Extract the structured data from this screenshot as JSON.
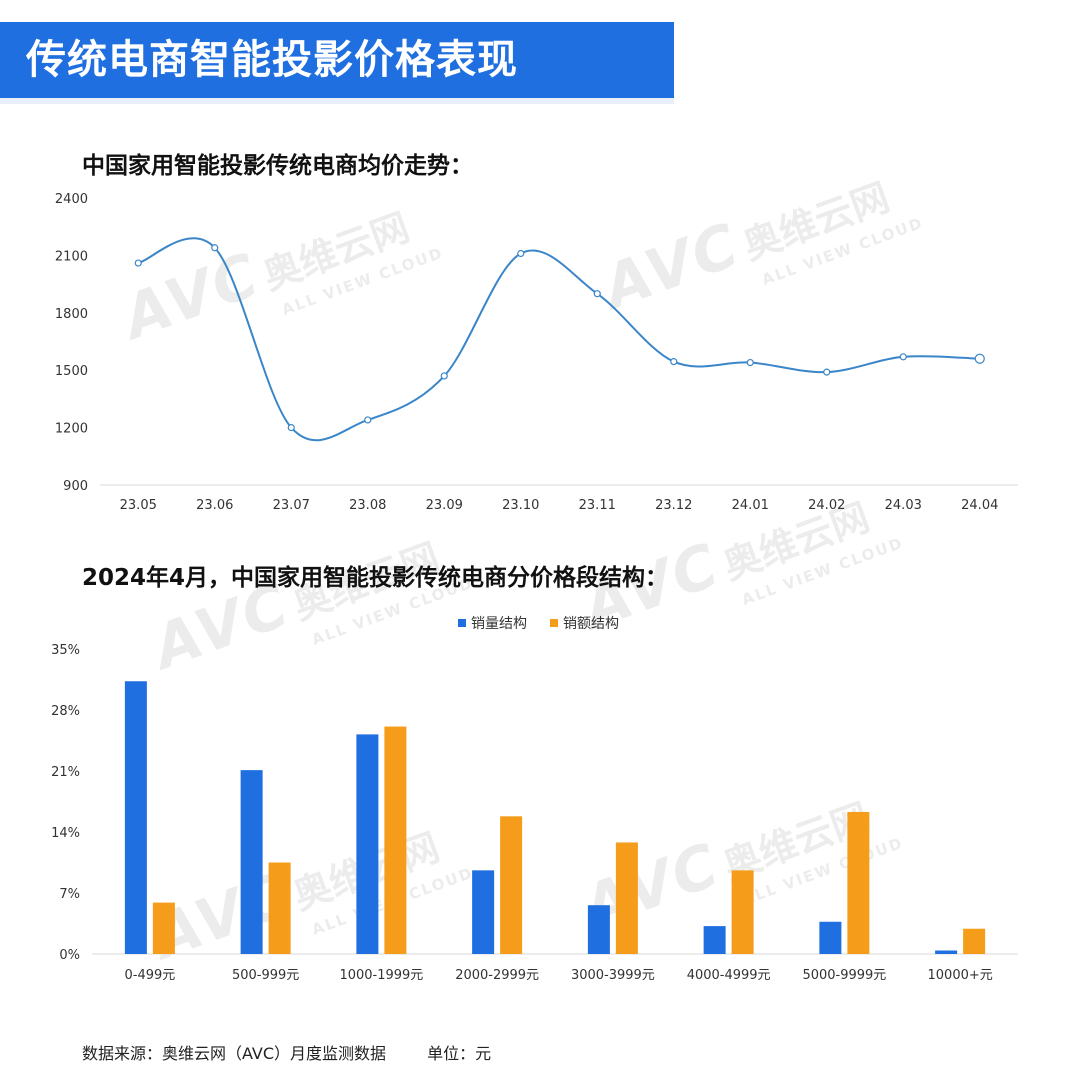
{
  "header": {
    "title": "传统电商智能投影价格表现"
  },
  "chart_data": [
    {
      "type": "line",
      "title": "中国家用智能投影传统电商均价走势：",
      "categories": [
        "23.05",
        "23.06",
        "23.07",
        "23.08",
        "23.09",
        "23.10",
        "23.11",
        "23.12",
        "24.01",
        "24.02",
        "24.03",
        "24.04"
      ],
      "values": [
        2060,
        2140,
        1200,
        1240,
        1470,
        2110,
        1900,
        1545,
        1540,
        1490,
        1570,
        1560
      ],
      "yticks": [
        900,
        1200,
        1500,
        1800,
        2100,
        2400
      ],
      "ylim": [
        900,
        2400
      ],
      "color": "#3a86c8",
      "grid": false
    },
    {
      "type": "bar",
      "title": "2024年4月，中国家用智能投影传统电商分价格段结构：",
      "categories": [
        "0-499元",
        "500-999元",
        "1000-1999元",
        "2000-2999元",
        "3000-3999元",
        "4000-4999元",
        "5000-9999元",
        "10000+元"
      ],
      "series": [
        {
          "name": "销量结构",
          "color": "#1f6fe0",
          "values": [
            31.3,
            21.1,
            25.2,
            9.6,
            5.6,
            3.2,
            3.7,
            0.4
          ]
        },
        {
          "name": "销额结构",
          "color": "#f59c1a",
          "values": [
            5.9,
            10.5,
            26.1,
            15.8,
            12.8,
            9.6,
            16.3,
            2.9
          ]
        }
      ],
      "yticks": [
        "0%",
        "7%",
        "14%",
        "21%",
        "28%",
        "35%"
      ],
      "ylim": [
        0,
        35
      ],
      "legend": "top-center",
      "grid": false
    }
  ],
  "watermark": {
    "logo": "AVC",
    "brand": "奥维云网",
    "sub": "ALL VIEW CLOUD"
  },
  "footer": {
    "source": "数据来源：奥维云网（AVC）月度监测数据",
    "unit": "单位：元"
  }
}
